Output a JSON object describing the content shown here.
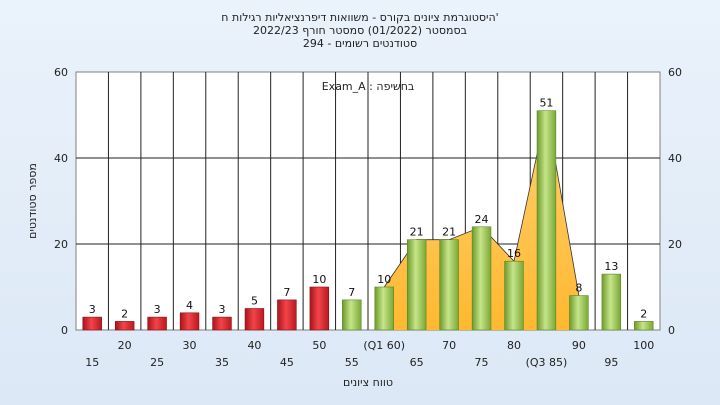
{
  "chart_data": {
    "type": "bar",
    "title_lines": [
      "'היסטוגרמת ציונים בקורס - משוואות דיפרנציאליות רגילות ח",
      "בסמסטר  (01/2022)  סמסטר חורף 2022/23",
      "סטודנטים רשומים - 294"
    ],
    "annotation": "בחשיפה : Exam_A",
    "xlabel": "טווח ציונים",
    "ylabel": "מספר סטודנטים",
    "ylim": [
      0,
      60
    ],
    "yticks": [
      0,
      20,
      40,
      60
    ],
    "categories": [
      "15",
      "20",
      "25",
      "30",
      "35",
      "40",
      "45",
      "50",
      "55",
      "(Q1 60)",
      "65",
      "70",
      "75",
      "80",
      "(Q3 85)",
      "90",
      "95",
      "100"
    ],
    "values": [
      3,
      2,
      3,
      4,
      3,
      5,
      7,
      10,
      7,
      10,
      21,
      21,
      24,
      16,
      51,
      8,
      13,
      2
    ],
    "colors": {
      "low": "#d8232a",
      "high": "#8fc14a",
      "area": "#ffc24a"
    },
    "grid": true
  }
}
